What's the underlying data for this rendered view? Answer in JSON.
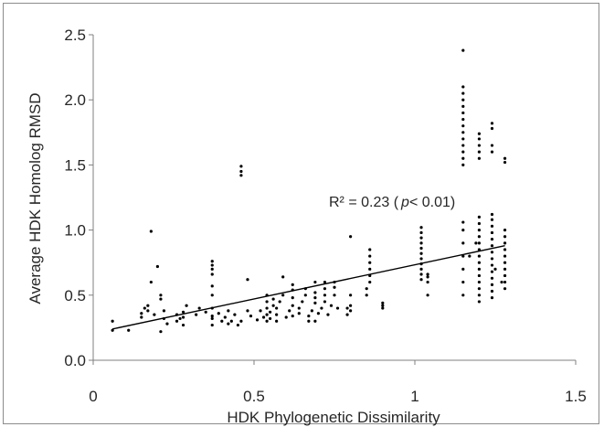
{
  "chart_data": {
    "type": "scatter",
    "xlabel": "HDK Phylogenetic Dissimilarity",
    "ylabel": "Average HDK Homolog RMSD",
    "xlim": [
      0,
      1.5
    ],
    "ylim": [
      0,
      2.5
    ],
    "xticks": [
      "0",
      "0.5",
      "1",
      "1.5"
    ],
    "yticks": [
      "0.0",
      "0.5",
      "1.0",
      "1.5",
      "2.0",
      "2.5"
    ],
    "grid": false,
    "annotation": {
      "prefix": "R² = 0.23 (",
      "italic": "p",
      "suffix": "< 0.01)"
    },
    "trendline": {
      "x": [
        0.06,
        1.28
      ],
      "y": [
        0.24,
        0.88
      ]
    },
    "marker_color": "#000000",
    "points": [
      [
        0.06,
        0.23
      ],
      [
        0.06,
        0.3
      ],
      [
        0.11,
        0.23
      ],
      [
        0.15,
        0.33
      ],
      [
        0.15,
        0.36
      ],
      [
        0.16,
        0.4
      ],
      [
        0.17,
        0.38
      ],
      [
        0.17,
        0.42
      ],
      [
        0.18,
        0.6
      ],
      [
        0.18,
        0.99
      ],
      [
        0.19,
        0.35
      ],
      [
        0.2,
        0.72
      ],
      [
        0.21,
        0.22
      ],
      [
        0.21,
        0.47
      ],
      [
        0.21,
        0.5
      ],
      [
        0.22,
        0.32
      ],
      [
        0.22,
        0.38
      ],
      [
        0.23,
        0.28
      ],
      [
        0.26,
        0.3
      ],
      [
        0.26,
        0.35
      ],
      [
        0.27,
        0.32
      ],
      [
        0.28,
        0.27
      ],
      [
        0.28,
        0.37
      ],
      [
        0.28,
        0.33
      ],
      [
        0.29,
        0.42
      ],
      [
        0.32,
        0.35
      ],
      [
        0.33,
        0.4
      ],
      [
        0.35,
        0.37
      ],
      [
        0.37,
        0.27
      ],
      [
        0.37,
        0.32
      ],
      [
        0.37,
        0.34
      ],
      [
        0.37,
        0.4
      ],
      [
        0.37,
        0.5
      ],
      [
        0.37,
        0.57
      ],
      [
        0.37,
        0.66
      ],
      [
        0.37,
        0.7
      ],
      [
        0.37,
        0.73
      ],
      [
        0.37,
        0.76
      ],
      [
        0.39,
        0.36
      ],
      [
        0.4,
        0.3
      ],
      [
        0.41,
        0.33
      ],
      [
        0.42,
        0.38
      ],
      [
        0.42,
        0.28
      ],
      [
        0.43,
        0.3
      ],
      [
        0.44,
        0.35
      ],
      [
        0.45,
        0.27
      ],
      [
        0.46,
        0.3
      ],
      [
        0.46,
        1.42
      ],
      [
        0.46,
        1.45
      ],
      [
        0.46,
        1.49
      ],
      [
        0.48,
        0.62
      ],
      [
        0.48,
        0.38
      ],
      [
        0.49,
        0.34
      ],
      [
        0.51,
        0.31
      ],
      [
        0.52,
        0.38
      ],
      [
        0.53,
        0.33
      ],
      [
        0.54,
        0.3
      ],
      [
        0.54,
        0.35
      ],
      [
        0.54,
        0.4
      ],
      [
        0.54,
        0.45
      ],
      [
        0.54,
        0.5
      ],
      [
        0.55,
        0.32
      ],
      [
        0.55,
        0.37
      ],
      [
        0.56,
        0.42
      ],
      [
        0.56,
        0.47
      ],
      [
        0.57,
        0.3
      ],
      [
        0.57,
        0.35
      ],
      [
        0.57,
        0.4
      ],
      [
        0.58,
        0.45
      ],
      [
        0.59,
        0.5
      ],
      [
        0.59,
        0.64
      ],
      [
        0.6,
        0.33
      ],
      [
        0.61,
        0.38
      ],
      [
        0.62,
        0.34
      ],
      [
        0.62,
        0.42
      ],
      [
        0.62,
        0.48
      ],
      [
        0.62,
        0.54
      ],
      [
        0.62,
        0.58
      ],
      [
        0.64,
        0.36
      ],
      [
        0.64,
        0.4
      ],
      [
        0.65,
        0.45
      ],
      [
        0.66,
        0.5
      ],
      [
        0.66,
        0.55
      ],
      [
        0.67,
        0.3
      ],
      [
        0.67,
        0.34
      ],
      [
        0.68,
        0.38
      ],
      [
        0.69,
        0.3
      ],
      [
        0.69,
        0.44
      ],
      [
        0.69,
        0.48
      ],
      [
        0.69,
        0.52
      ],
      [
        0.69,
        0.6
      ],
      [
        0.7,
        0.36
      ],
      [
        0.71,
        0.4
      ],
      [
        0.72,
        0.45
      ],
      [
        0.72,
        0.5
      ],
      [
        0.72,
        0.55
      ],
      [
        0.72,
        0.6
      ],
      [
        0.73,
        0.35
      ],
      [
        0.74,
        0.42
      ],
      [
        0.75,
        0.5
      ],
      [
        0.75,
        0.56
      ],
      [
        0.75,
        0.6
      ],
      [
        0.76,
        0.4
      ],
      [
        0.79,
        0.35
      ],
      [
        0.79,
        0.4
      ],
      [
        0.8,
        0.38
      ],
      [
        0.8,
        0.42
      ],
      [
        0.8,
        0.5
      ],
      [
        0.8,
        0.95
      ],
      [
        0.85,
        0.5
      ],
      [
        0.85,
        0.55
      ],
      [
        0.86,
        0.6
      ],
      [
        0.86,
        0.65
      ],
      [
        0.86,
        0.7
      ],
      [
        0.86,
        0.75
      ],
      [
        0.86,
        0.8
      ],
      [
        0.86,
        0.85
      ],
      [
        0.9,
        0.4
      ],
      [
        0.9,
        0.42
      ],
      [
        0.9,
        0.44
      ],
      [
        1.02,
        0.62
      ],
      [
        1.02,
        0.66
      ],
      [
        1.02,
        0.7
      ],
      [
        1.02,
        0.74
      ],
      [
        1.02,
        0.78
      ],
      [
        1.02,
        0.82
      ],
      [
        1.02,
        0.86
      ],
      [
        1.02,
        0.9
      ],
      [
        1.02,
        0.94
      ],
      [
        1.02,
        0.98
      ],
      [
        1.02,
        1.02
      ],
      [
        1.04,
        0.5
      ],
      [
        1.04,
        0.6
      ],
      [
        1.04,
        0.64
      ],
      [
        1.04,
        0.66
      ],
      [
        1.15,
        0.5
      ],
      [
        1.15,
        0.6
      ],
      [
        1.15,
        0.7
      ],
      [
        1.15,
        0.8
      ],
      [
        1.15,
        0.9
      ],
      [
        1.15,
        1.0
      ],
      [
        1.15,
        1.06
      ],
      [
        1.15,
        1.5
      ],
      [
        1.15,
        1.55
      ],
      [
        1.15,
        1.6
      ],
      [
        1.15,
        1.65
      ],
      [
        1.15,
        1.7
      ],
      [
        1.15,
        1.75
      ],
      [
        1.15,
        1.8
      ],
      [
        1.15,
        1.85
      ],
      [
        1.15,
        1.9
      ],
      [
        1.15,
        1.95
      ],
      [
        1.15,
        2.0
      ],
      [
        1.15,
        2.05
      ],
      [
        1.15,
        2.1
      ],
      [
        1.15,
        2.38
      ],
      [
        1.17,
        0.8
      ],
      [
        1.19,
        0.9
      ],
      [
        1.2,
        0.45
      ],
      [
        1.2,
        0.5
      ],
      [
        1.2,
        0.55
      ],
      [
        1.2,
        0.6
      ],
      [
        1.2,
        0.65
      ],
      [
        1.2,
        0.7
      ],
      [
        1.2,
        0.75
      ],
      [
        1.2,
        0.8
      ],
      [
        1.2,
        0.85
      ],
      [
        1.2,
        0.9
      ],
      [
        1.2,
        0.95
      ],
      [
        1.2,
        1.0
      ],
      [
        1.2,
        1.05
      ],
      [
        1.2,
        1.1
      ],
      [
        1.2,
        1.55
      ],
      [
        1.2,
        1.6
      ],
      [
        1.2,
        1.65
      ],
      [
        1.2,
        1.7
      ],
      [
        1.2,
        1.74
      ],
      [
        1.24,
        0.48
      ],
      [
        1.24,
        0.53
      ],
      [
        1.24,
        0.58
      ],
      [
        1.24,
        0.63
      ],
      [
        1.24,
        0.68
      ],
      [
        1.24,
        0.73
      ],
      [
        1.24,
        0.78
      ],
      [
        1.24,
        0.83
      ],
      [
        1.24,
        0.88
      ],
      [
        1.24,
        0.93
      ],
      [
        1.24,
        0.98
      ],
      [
        1.24,
        1.03
      ],
      [
        1.24,
        1.08
      ],
      [
        1.24,
        1.12
      ],
      [
        1.24,
        1.6
      ],
      [
        1.24,
        1.65
      ],
      [
        1.24,
        1.78
      ],
      [
        1.24,
        1.82
      ],
      [
        1.25,
        0.7
      ],
      [
        1.27,
        0.6
      ],
      [
        1.28,
        0.55
      ],
      [
        1.28,
        0.6
      ],
      [
        1.28,
        0.65
      ],
      [
        1.28,
        0.7
      ],
      [
        1.28,
        0.75
      ],
      [
        1.28,
        0.8
      ],
      [
        1.28,
        0.85
      ],
      [
        1.28,
        0.9
      ],
      [
        1.28,
        0.95
      ],
      [
        1.28,
        1.0
      ],
      [
        1.28,
        1.52
      ],
      [
        1.28,
        1.55
      ]
    ]
  }
}
